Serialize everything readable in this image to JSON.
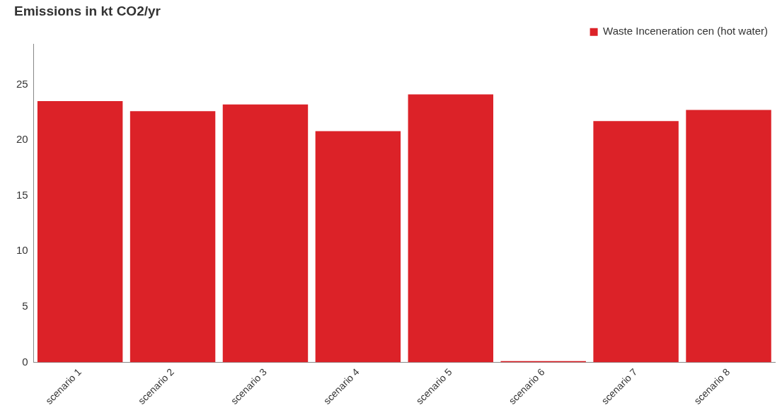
{
  "chart_data": {
    "type": "bar",
    "title": "Emissions in kt CO2/yr",
    "categories": [
      "scenario 1",
      "scenario 2",
      "scenario 3",
      "scenario 4",
      "scenario 5",
      "scenario 6",
      "scenario 7",
      "scenario 8"
    ],
    "series": [
      {
        "name": "Waste Inceneration cen (hot water)",
        "color": "#dc2228",
        "values": [
          23.5,
          22.6,
          23.2,
          20.8,
          24.1,
          0.1,
          21.7,
          22.7
        ]
      }
    ],
    "ylim": [
      0,
      28.6
    ],
    "yticks": [
      0,
      5,
      10,
      15,
      20,
      25
    ],
    "grid": false,
    "legend": "top right"
  }
}
